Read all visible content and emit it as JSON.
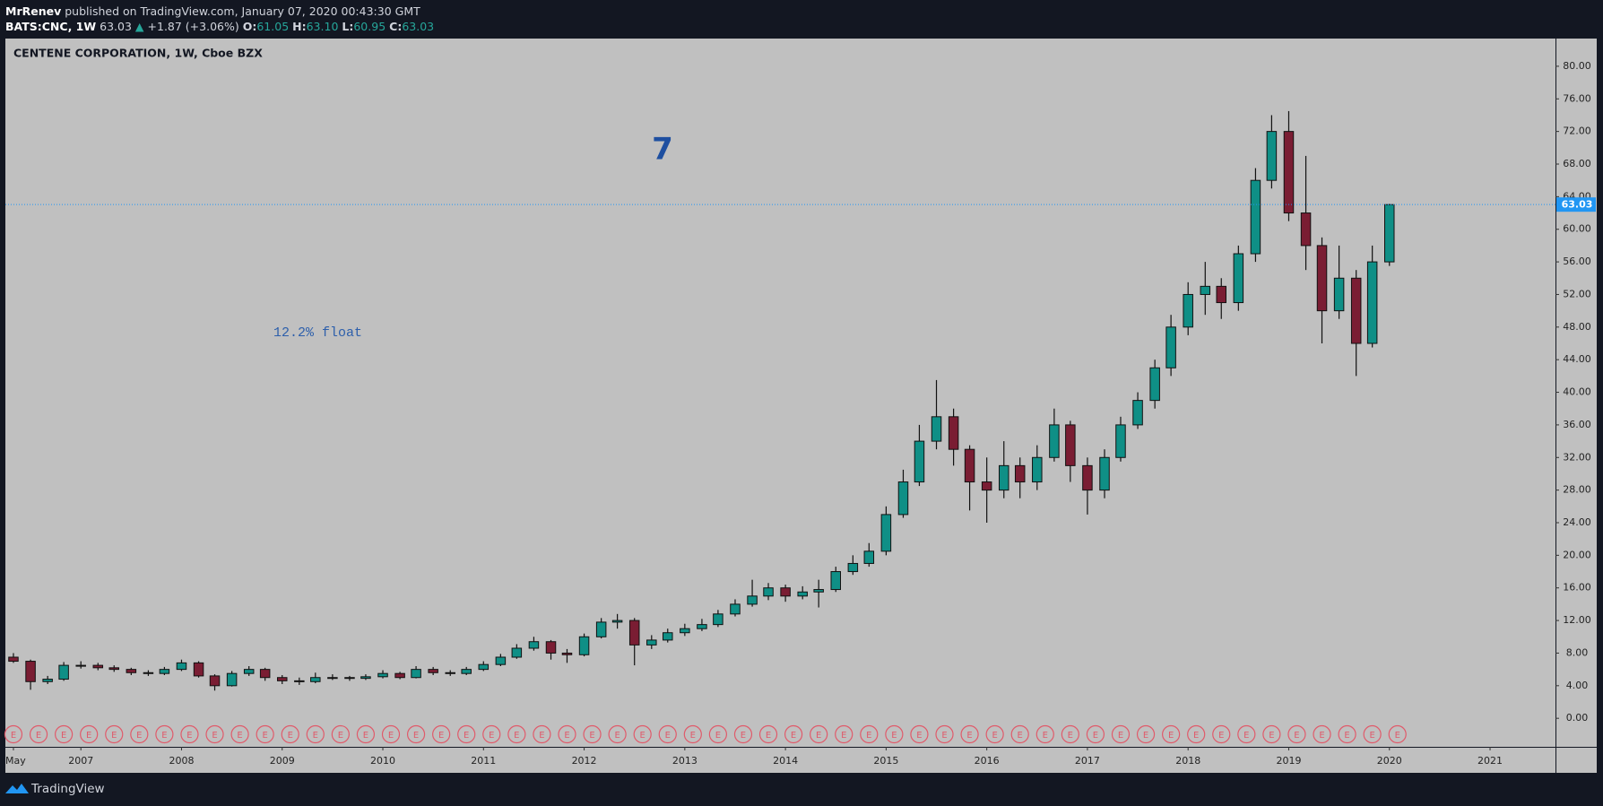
{
  "header": {
    "publisher": "MrRenev",
    "published": "published on TradingView.com, January 07, 2020 00:43:30 GMT",
    "symbol": "BATS:CNC, 1W",
    "last": "63.03",
    "arrow": "▲",
    "change": "+1.87 (+3.06%)",
    "ohlc": [
      {
        "label": "O:",
        "value": "61.05"
      },
      {
        "label": "H:",
        "value": "63.10"
      },
      {
        "label": "L:",
        "value": "60.95"
      },
      {
        "label": "C:",
        "value": "63.03"
      }
    ]
  },
  "footer": {
    "brand": "TradingView"
  },
  "chart_data": {
    "type": "candlestick",
    "title": "CENTENE CORPORATION, 1W, Cboe BZX",
    "annotations": [
      "7",
      "12.2% float"
    ],
    "x": [
      2006.33,
      2006.5,
      2006.67,
      2006.83,
      2007,
      2007.17,
      2007.33,
      2007.5,
      2007.67,
      2007.83,
      2008,
      2008.17,
      2008.33,
      2008.5,
      2008.67,
      2008.83,
      2009,
      2009.17,
      2009.33,
      2009.5,
      2009.67,
      2009.83,
      2010,
      2010.17,
      2010.33,
      2010.5,
      2010.67,
      2010.83,
      2011,
      2011.17,
      2011.33,
      2011.5,
      2011.67,
      2011.83,
      2012,
      2012.17,
      2012.33,
      2012.5,
      2012.67,
      2012.83,
      2013,
      2013.17,
      2013.33,
      2013.5,
      2013.67,
      2013.83,
      2014,
      2014.17,
      2014.33,
      2014.5,
      2014.67,
      2014.83,
      2015,
      2015.17,
      2015.33,
      2015.5,
      2015.67,
      2015.83,
      2016,
      2016.17,
      2016.33,
      2016.5,
      2016.67,
      2016.83,
      2017,
      2017.17,
      2017.33,
      2017.5,
      2017.67,
      2017.83,
      2018,
      2018.17,
      2018.33,
      2018.5,
      2018.67,
      2018.83,
      2019,
      2019.17,
      2019.33,
      2019.5,
      2019.67,
      2019.83,
      2020
    ],
    "open": [
      7.5,
      7,
      4.5,
      4.8,
      6.5,
      6.5,
      6.2,
      6,
      5.6,
      5.5,
      6,
      6.8,
      5.2,
      4,
      5.5,
      6,
      5,
      4.6,
      4.5,
      5,
      5,
      4.9,
      5.1,
      5.5,
      5,
      6,
      5.6,
      5.5,
      6,
      6.6,
      7.5,
      8.6,
      9.4,
      8,
      7.8,
      10,
      11.8,
      12,
      9,
      9.6,
      10.5,
      11,
      11.5,
      12.8,
      14,
      15,
      16,
      15,
      15.5,
      15.8,
      18,
      19,
      20.5,
      25,
      29,
      34,
      37,
      33,
      29,
      28,
      31,
      29,
      32,
      36,
      31,
      28,
      32,
      36,
      39,
      43,
      48,
      52,
      53,
      51,
      57,
      66,
      72,
      62,
      58,
      50,
      54,
      46,
      56
    ],
    "high": [
      8,
      7.2,
      5.2,
      6.9,
      7,
      6.8,
      6.5,
      6.2,
      5.9,
      6.3,
      7.2,
      7,
      5.4,
      5.8,
      6.4,
      6.2,
      5.3,
      5,
      5.6,
      5.4,
      5.2,
      5.4,
      5.9,
      5.7,
      6.4,
      6.3,
      5.9,
      6.3,
      7,
      7.9,
      9.1,
      10,
      9.6,
      8.5,
      10.4,
      12.3,
      12.8,
      12.3,
      10.2,
      11,
      11.6,
      12.2,
      13.3,
      14.6,
      17,
      16.6,
      16.4,
      16.2,
      17,
      18.6,
      20,
      21.5,
      26,
      30.5,
      36,
      41.5,
      38,
      33.5,
      32,
      34,
      32,
      33.5,
      38,
      36.5,
      32,
      33,
      37,
      40,
      44,
      49.5,
      53.5,
      56,
      54,
      58,
      67.5,
      74,
      74.5,
      69,
      59,
      58,
      55,
      58,
      63.1
    ],
    "low": [
      6.8,
      3.5,
      4.2,
      4.6,
      6.1,
      5.9,
      5.7,
      5.3,
      5.2,
      5.3,
      5.8,
      5,
      3.4,
      3.9,
      5.2,
      4.6,
      4.2,
      4.1,
      4.3,
      4.7,
      4.6,
      4.7,
      4.9,
      4.8,
      4.9,
      5.3,
      5.2,
      5.3,
      5.8,
      6.4,
      7.3,
      8.3,
      7.2,
      6.8,
      7.6,
      9.8,
      11,
      6.5,
      8.5,
      9.3,
      10.1,
      10.7,
      11.2,
      12.5,
      13.7,
      14.5,
      14.3,
      14.6,
      13.6,
      15.5,
      17.6,
      18.6,
      20,
      24.6,
      28.5,
      33,
      31,
      25.5,
      24,
      27,
      27,
      28,
      31.5,
      29,
      25,
      27,
      31.5,
      35.5,
      38,
      42,
      47,
      49.5,
      49,
      50,
      56,
      65,
      61,
      55,
      46,
      49,
      42,
      45.5,
      55.5
    ],
    "close": [
      7,
      4.5,
      4.8,
      6.5,
      6.5,
      6.2,
      6,
      5.6,
      5.5,
      6,
      6.8,
      5.2,
      4,
      5.5,
      6,
      5,
      4.6,
      4.5,
      5,
      5,
      4.9,
      5.1,
      5.5,
      5,
      6,
      5.6,
      5.5,
      6,
      6.6,
      7.5,
      8.6,
      9.4,
      8,
      7.8,
      10,
      11.8,
      12,
      9,
      9.6,
      10.5,
      11,
      11.5,
      12.8,
      14,
      15,
      16,
      15,
      15.5,
      15.8,
      18,
      19,
      20.5,
      25,
      29,
      34,
      37,
      33,
      29,
      28,
      31,
      29,
      32,
      36,
      31,
      28,
      32,
      36,
      39,
      43,
      48,
      52,
      53,
      51,
      57,
      66,
      72,
      62,
      58,
      50,
      54,
      46,
      56,
      63.03
    ],
    "up_color": "#0f8f86",
    "down_color": "#7a1d33",
    "wick_color": "#111111",
    "last_price": 63.03,
    "last_price_color": "#2196f3",
    "events": {
      "label": "E",
      "color": "#e05a6a",
      "x": [
        2006.33,
        2006.58,
        2006.83,
        2007.08,
        2007.33,
        2007.58,
        2007.83,
        2008.08,
        2008.33,
        2008.58,
        2008.83,
        2009.08,
        2009.33,
        2009.58,
        2009.83,
        2010.08,
        2010.33,
        2010.58,
        2010.83,
        2011.08,
        2011.33,
        2011.58,
        2011.83,
        2012.08,
        2012.33,
        2012.58,
        2012.83,
        2013.08,
        2013.33,
        2013.58,
        2013.83,
        2014.08,
        2014.33,
        2014.58,
        2014.83,
        2015.08,
        2015.33,
        2015.58,
        2015.83,
        2016.08,
        2016.33,
        2016.58,
        2016.83,
        2017.08,
        2017.33,
        2017.58,
        2017.83,
        2018.08,
        2018.33,
        2018.58,
        2018.83,
        2019.08,
        2019.33,
        2019.58,
        2019.83,
        2020.08
      ]
    },
    "xlim": [
      2006.25,
      2021.65
    ],
    "xticks": [
      {
        "value": 2006.33,
        "label": "May"
      },
      2007,
      2008,
      2009,
      2010,
      2011,
      2012,
      2013,
      2014,
      2015,
      2016,
      2017,
      2018,
      2019,
      2020,
      2021
    ],
    "ylim": [
      -3.5,
      83.4
    ],
    "yticks": [
      {
        "value": 0,
        "label": "0.00"
      },
      {
        "value": 4,
        "label": "4.00"
      },
      {
        "value": 8,
        "label": "8.00"
      },
      {
        "value": 12,
        "label": "12.00"
      },
      {
        "value": 16,
        "label": "16.00"
      },
      {
        "value": 20,
        "label": "20.00"
      },
      {
        "value": 24,
        "label": "24.00"
      },
      {
        "value": 28,
        "label": "28.00"
      },
      {
        "value": 32,
        "label": "32.00"
      },
      {
        "value": 36,
        "label": "36.00"
      },
      {
        "value": 40,
        "label": "40.00"
      },
      {
        "value": 44,
        "label": "44.00"
      },
      {
        "value": 48,
        "label": "48.00"
      },
      {
        "value": 52,
        "label": "52.00"
      },
      {
        "value": 56,
        "label": "56.00"
      },
      {
        "value": 60,
        "label": "60.00"
      },
      {
        "value": 64,
        "label": "64.00"
      },
      {
        "value": 68,
        "label": "68.00"
      },
      {
        "value": 72,
        "label": "72.00"
      },
      {
        "value": 76,
        "label": "76.00"
      },
      {
        "value": 80,
        "label": "80.00"
      }
    ],
    "grid": false
  }
}
